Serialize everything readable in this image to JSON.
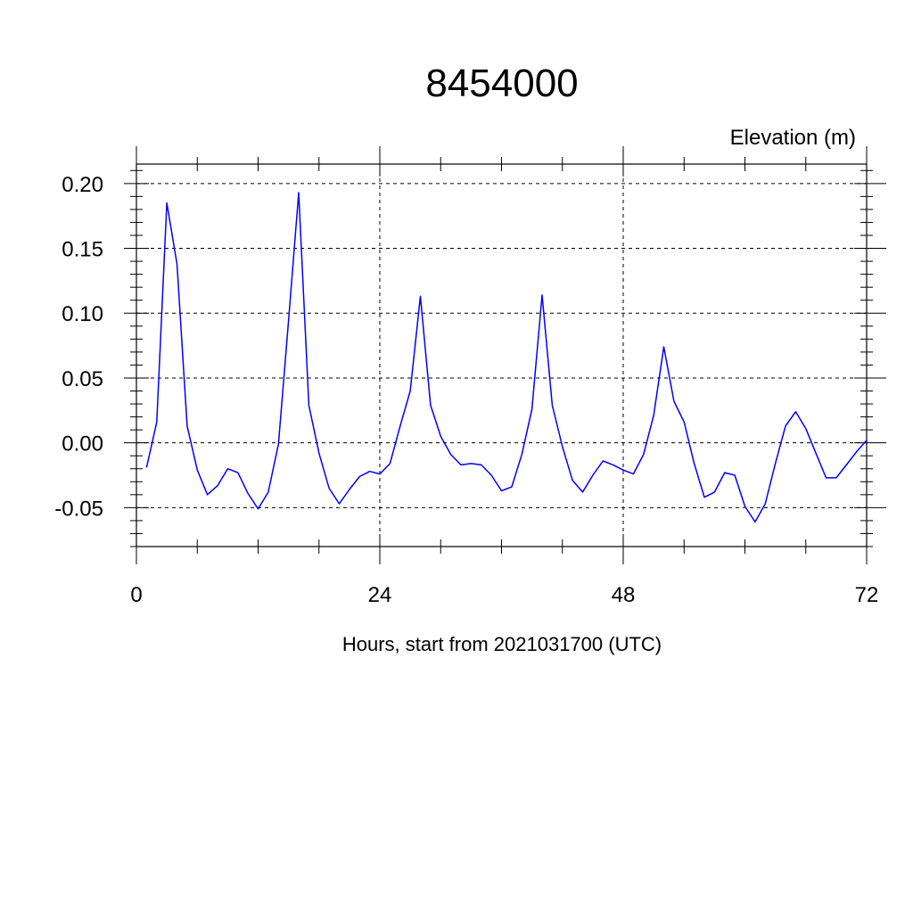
{
  "chart_data": {
    "type": "line",
    "title": "8454000",
    "ylabel": "Elevation (m)",
    "xlabel": "Hours, start from 2021031700 (UTC)",
    "xlim": [
      0,
      72
    ],
    "ylim": [
      -0.08,
      0.215
    ],
    "x_ticks": [
      0,
      24,
      48,
      72
    ],
    "x_tick_labels": [
      "0",
      "24",
      "48",
      "72"
    ],
    "y_ticks": [
      -0.05,
      0.0,
      0.05,
      0.1,
      0.15,
      0.2
    ],
    "y_tick_labels": [
      "-0.05",
      "0.00",
      "0.05",
      "0.10",
      "0.15",
      "0.20"
    ],
    "grid": true,
    "series": [
      {
        "color": "#0000ff",
        "x": [
          1,
          2,
          3,
          4,
          5,
          6,
          7,
          8,
          9,
          10,
          11,
          12,
          13,
          14,
          15,
          16,
          17,
          18,
          19,
          20,
          21,
          22,
          23,
          24,
          25,
          26,
          27,
          28,
          29,
          30,
          31,
          32,
          33,
          34,
          35,
          36,
          37,
          38,
          39,
          40,
          41,
          42,
          43,
          44,
          45,
          46,
          47,
          48,
          49,
          50,
          51,
          52,
          53,
          54,
          55,
          56,
          57,
          58,
          59,
          60,
          61,
          62,
          63,
          64,
          65,
          66,
          67,
          68,
          69,
          70,
          71,
          72
        ],
        "y": [
          -0.019,
          0.016,
          0.185,
          0.138,
          0.013,
          -0.021,
          -0.04,
          -0.033,
          -0.02,
          -0.023,
          -0.039,
          -0.051,
          -0.038,
          -0.001,
          0.094,
          0.193,
          0.029,
          -0.008,
          -0.035,
          -0.047,
          -0.036,
          -0.026,
          -0.022,
          -0.024,
          -0.016,
          0.013,
          0.04,
          0.113,
          0.029,
          0.005,
          -0.009,
          -0.017,
          -0.016,
          -0.017,
          -0.025,
          -0.037,
          -0.034,
          -0.009,
          0.026,
          0.114,
          0.029,
          -0.003,
          -0.029,
          -0.038,
          -0.025,
          -0.014,
          -0.017,
          -0.021,
          -0.024,
          -0.009,
          0.021,
          0.074,
          0.032,
          0.016,
          -0.016,
          -0.042,
          -0.038,
          -0.023,
          -0.025,
          -0.049,
          -0.061,
          -0.047,
          -0.016,
          0.013,
          0.024,
          0.011,
          -0.008,
          -0.027,
          -0.027,
          -0.017,
          -0.007,
          0.002
        ]
      }
    ]
  }
}
